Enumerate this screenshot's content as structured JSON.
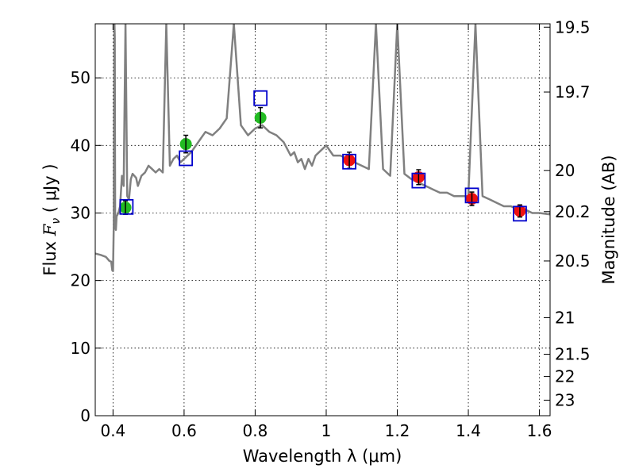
{
  "chart_data": {
    "type": "line",
    "xlabel": "Wavelength  λ (μm)",
    "ylabel": "Flux  F_ν  ( μJy )",
    "ylabel_parts": {
      "prefix": "Flux  ",
      "var": "F",
      "sub": "ν",
      "suffix": "  ( μJy )"
    },
    "right_ylabel": "Magnitude (AB)",
    "xlim": [
      0.35,
      1.63
    ],
    "ylim": [
      0,
      58
    ],
    "grid": true,
    "x_ticks": [
      0.4,
      0.6,
      0.8,
      1.0,
      1.2,
      1.4,
      1.6
    ],
    "x_tick_labels": [
      "0.4",
      "0.6",
      "0.8",
      "1",
      "1.2",
      "1.4",
      "1.6"
    ],
    "y_ticks": [
      0,
      10,
      20,
      30,
      40,
      50
    ],
    "y_tick_labels": [
      "0",
      "10",
      "20",
      "30",
      "40",
      "50"
    ],
    "mag_ticks": [
      {
        "label": "19.5",
        "flux": 57.5
      },
      {
        "label": "19.7",
        "flux": 47.9
      },
      {
        "label": "20",
        "flux": 36.3
      },
      {
        "label": "20.2",
        "flux": 30.2
      },
      {
        "label": "20.5",
        "flux": 22.9
      },
      {
        "label": "21",
        "flux": 14.5
      },
      {
        "label": "21.5",
        "flux": 9.1
      },
      {
        "label": "22",
        "flux": 5.8
      },
      {
        "label": "23",
        "flux": 2.3
      }
    ],
    "colors": {
      "spectrum": "#808080",
      "green": "#22bb22",
      "red": "#ee1111",
      "model": "#0000cc"
    },
    "spectrum": {
      "name": "model spectrum",
      "x": [
        0.35,
        0.365,
        0.38,
        0.39,
        0.395,
        0.398,
        0.4,
        0.402,
        0.404,
        0.405,
        0.406,
        0.408,
        0.41,
        0.415,
        0.42,
        0.425,
        0.43,
        0.435,
        0.44,
        0.445,
        0.45,
        0.455,
        0.46,
        0.465,
        0.47,
        0.48,
        0.49,
        0.5,
        0.51,
        0.52,
        0.53,
        0.54,
        0.55,
        0.56,
        0.57,
        0.58,
        0.59,
        0.6,
        0.62,
        0.64,
        0.66,
        0.68,
        0.7,
        0.72,
        0.74,
        0.76,
        0.78,
        0.8,
        0.82,
        0.84,
        0.86,
        0.88,
        0.9,
        0.91,
        0.92,
        0.93,
        0.94,
        0.95,
        0.96,
        0.97,
        0.98,
        0.99,
        1.0,
        1.02,
        1.04,
        1.06,
        1.08,
        1.1,
        1.12,
        1.14,
        1.16,
        1.18,
        1.2,
        1.22,
        1.24,
        1.26,
        1.28,
        1.3,
        1.32,
        1.34,
        1.36,
        1.38,
        1.4,
        1.42,
        1.44,
        1.46,
        1.48,
        1.5,
        1.52,
        1.54,
        1.56,
        1.58,
        1.6,
        1.63
      ],
      "y": [
        24.0,
        23.8,
        23.5,
        22.9,
        22.8,
        21.5,
        21.4,
        28.0,
        58.0,
        56.0,
        28.0,
        27.5,
        29.5,
        30.0,
        31.0,
        35.5,
        34.0,
        58.0,
        32.5,
        32.0,
        35.0,
        35.8,
        35.5,
        35.2,
        34.0,
        35.5,
        36.0,
        37.0,
        36.5,
        36.0,
        36.5,
        36.0,
        58.0,
        37.0,
        38.0,
        38.5,
        37.5,
        38.0,
        39.0,
        40.5,
        42.0,
        41.5,
        42.5,
        44.0,
        58.0,
        43.0,
        41.5,
        42.5,
        43.0,
        42.0,
        41.5,
        40.5,
        38.5,
        39.0,
        37.5,
        38.0,
        36.5,
        38.0,
        37.0,
        38.5,
        39.0,
        39.5,
        40.0,
        38.5,
        38.5,
        38.0,
        37.5,
        37.0,
        36.5,
        58.0,
        36.5,
        35.5,
        58.0,
        35.8,
        35.0,
        34.5,
        34.0,
        33.5,
        33.0,
        33.0,
        32.5,
        32.5,
        32.5,
        58.0,
        32.5,
        32.0,
        31.5,
        31.0,
        31.0,
        30.5,
        30.5,
        30.0,
        30.0,
        29.8
      ]
    },
    "series": [
      {
        "name": "green observations",
        "marker": "circle",
        "color": "#22bb22",
        "x": [
          0.435,
          0.605,
          0.815
        ],
        "y": [
          30.8,
          40.2,
          44.1
        ],
        "err": [
          1.0,
          1.3,
          1.5
        ]
      },
      {
        "name": "red observations",
        "marker": "circle",
        "color": "#ee1111",
        "x": [
          1.065,
          1.26,
          1.41,
          1.545
        ],
        "y": [
          37.8,
          35.3,
          32.1,
          30.3
        ],
        "err": [
          1.2,
          1.1,
          1.0,
          0.9
        ]
      },
      {
        "name": "model photometry",
        "marker": "open-square",
        "color": "#0000cc",
        "x": [
          0.438,
          0.605,
          0.815,
          1.065,
          1.26,
          1.41,
          1.545
        ],
        "y": [
          30.9,
          38.1,
          47.0,
          37.6,
          34.8,
          32.6,
          29.9
        ]
      }
    ]
  }
}
